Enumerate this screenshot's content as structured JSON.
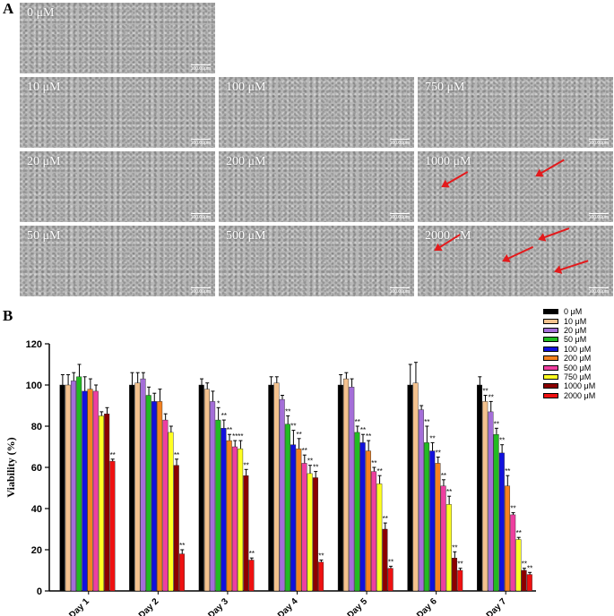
{
  "panel_a": {
    "label": "A",
    "scale_bar": "100.00μm",
    "images": [
      {
        "conc": "0 μM",
        "arrows": []
      },
      {
        "conc": "10 μM",
        "arrows": []
      },
      {
        "conc": "100 μM",
        "arrows": []
      },
      {
        "conc": "750 μM",
        "arrows": []
      },
      {
        "conc": "20 μM",
        "arrows": []
      },
      {
        "conc": "200 μM",
        "arrows": []
      },
      {
        "conc": "1000 μM",
        "arrows": [
          1,
          2
        ]
      },
      {
        "conc": "50 μM",
        "arrows": []
      },
      {
        "conc": "500 μM",
        "arrows": []
      },
      {
        "conc": "2000 μM",
        "arrows": [
          1,
          2,
          3,
          4
        ]
      }
    ],
    "arrow_color": "#e31a1c"
  },
  "panel_b": {
    "label": "B"
  },
  "chart_data": {
    "type": "bar",
    "ylabel": "Viability (%)",
    "xlabel": "",
    "ylim": [
      0,
      120
    ],
    "yticks": [
      0,
      20,
      40,
      60,
      80,
      100,
      120
    ],
    "categories": [
      "Day 1",
      "Day 2",
      "Day 3",
      "Day 4",
      "Day 5",
      "Day 6",
      "Day 7"
    ],
    "significance_marker": "**",
    "series": [
      {
        "name": "0 μM",
        "color": "#000000",
        "values": [
          100,
          100,
          100,
          100,
          100,
          100,
          100
        ],
        "err": [
          5,
          6,
          3,
          4,
          5,
          10,
          4
        ],
        "sig": [
          "",
          "",
          "",
          "",
          "",
          "",
          ""
        ]
      },
      {
        "name": "10 μM",
        "color": "#f4c28e",
        "values": [
          100,
          101,
          98,
          101,
          103,
          101,
          92
        ],
        "err": [
          5,
          5,
          3,
          3,
          3,
          10,
          3
        ],
        "sig": [
          "",
          "",
          "",
          "",
          "",
          "",
          "**"
        ]
      },
      {
        "name": "20 μM",
        "color": "#a46ed8",
        "values": [
          102,
          103,
          92,
          93,
          99,
          88,
          87
        ],
        "err": [
          4,
          3,
          5,
          2,
          4,
          2,
          5
        ],
        "sig": [
          "",
          "",
          "",
          "",
          "",
          "",
          "**"
        ]
      },
      {
        "name": "50 μM",
        "color": "#22bb22",
        "values": [
          104,
          95,
          83,
          81,
          77,
          72,
          76
        ],
        "err": [
          6,
          4,
          6,
          4,
          3,
          8,
          3
        ],
        "sig": [
          "",
          "",
          "*",
          "**",
          "**",
          "**",
          "**"
        ]
      },
      {
        "name": "100 μM",
        "color": "#1111dd",
        "values": [
          97,
          92,
          79,
          71,
          72,
          68,
          67
        ],
        "err": [
          7,
          4,
          4,
          7,
          4,
          4,
          4
        ],
        "sig": [
          "",
          "",
          "**",
          "**",
          "**",
          "**",
          "**"
        ]
      },
      {
        "name": "200 μM",
        "color": "#f58220",
        "values": [
          98,
          92,
          73,
          69,
          68,
          62,
          51
        ],
        "err": [
          5,
          6,
          3,
          5,
          5,
          3,
          5
        ],
        "sig": [
          "",
          "",
          "**",
          "**",
          "**",
          "**",
          "**"
        ]
      },
      {
        "name": "500 μM",
        "color": "#ee3fa0",
        "values": [
          97,
          83,
          70,
          62,
          58,
          51,
          37
        ],
        "err": [
          3,
          3,
          3,
          4,
          2,
          3,
          1
        ],
        "sig": [
          "",
          "",
          "**",
          "**",
          "**",
          "**",
          "**"
        ]
      },
      {
        "name": "750 μM",
        "color": "#ffff22",
        "values": [
          85,
          77,
          69,
          57,
          52,
          42,
          25
        ],
        "err": [
          2,
          3,
          4,
          4,
          4,
          4,
          1
        ],
        "sig": [
          "",
          "",
          "**",
          "**",
          "**",
          "**",
          "**"
        ]
      },
      {
        "name": "1000 μM",
        "color": "#8b0000",
        "values": [
          86,
          61,
          56,
          55,
          30,
          16,
          10
        ],
        "err": [
          3,
          3,
          3,
          3,
          3,
          3,
          1
        ],
        "sig": [
          "",
          "**",
          "**",
          "**",
          "**",
          "**",
          "**"
        ]
      },
      {
        "name": "2000 μM",
        "color": "#ee1111",
        "values": [
          63,
          18,
          15,
          14,
          11,
          10,
          8
        ],
        "err": [
          1,
          2,
          1,
          1,
          1,
          1,
          1
        ],
        "sig": [
          "**",
          "**",
          "**",
          "**",
          "**",
          "**",
          "**"
        ]
      }
    ],
    "legend_position": "top-right"
  }
}
